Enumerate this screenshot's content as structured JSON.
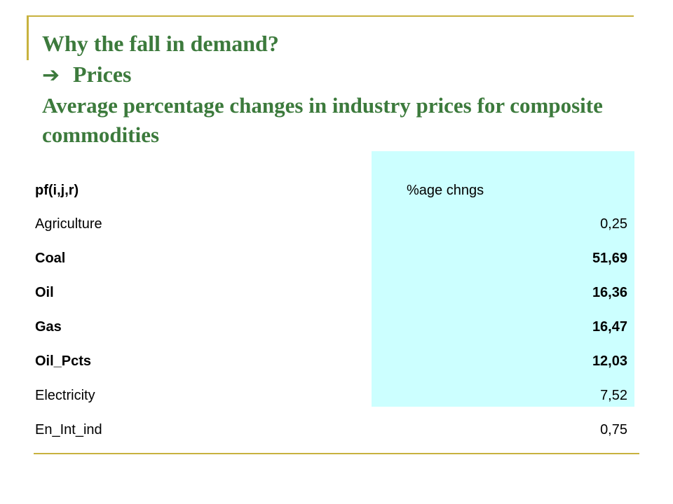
{
  "slide": {
    "title_line1": "Why the fall in demand?",
    "arrow_icon": "right-arrow-icon",
    "title_line2": "Prices",
    "subtitle": "Average percentage changes in industry prices for composite commodities"
  },
  "table": {
    "row_header": "pf(i,j,r)",
    "column_header": "%age chngs",
    "rows": [
      {
        "name": "Agriculture",
        "value": "0,25",
        "bold": false
      },
      {
        "name": "Coal",
        "value": "51,69",
        "bold": true
      },
      {
        "name": "Oil",
        "value": "16,36",
        "bold": true
      },
      {
        "name": "Gas",
        "value": "16,47",
        "bold": true
      },
      {
        "name": "Oil_Pcts",
        "value": "12,03",
        "bold": true
      },
      {
        "name": "Electricity",
        "value": "7,52",
        "bold": false
      },
      {
        "name": "En_Int_ind",
        "value": "0,75",
        "bold": false
      }
    ]
  },
  "colors": {
    "title": "#3c7a3c",
    "rule": "#c8b23e",
    "highlight_panel": "#ccffff"
  }
}
